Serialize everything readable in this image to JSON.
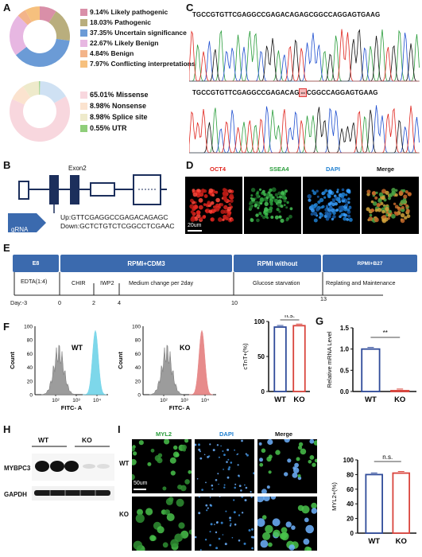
{
  "panels": {
    "a": "A",
    "b": "B",
    "c": "C",
    "d": "D",
    "e": "E",
    "f": "F",
    "g": "G",
    "h": "H",
    "i": "I"
  },
  "panelA": {
    "donut1": [
      {
        "label": "9.14% Likely pathogenic",
        "value": 9.14,
        "color": "#d98fa8"
      },
      {
        "label": "18.03% Pathogenic",
        "value": 18.03,
        "color": "#b9ae7d"
      },
      {
        "label": "37.35% Uncertain significance",
        "value": 37.35,
        "color": "#6b9bd6"
      },
      {
        "label": "22.67% Likely Benign",
        "value": 22.67,
        "color": "#e7b7e2"
      },
      {
        "label": "4.84% Benign",
        "value": 4.84,
        "color": "#f3b48a"
      },
      {
        "label": "7.97% Conflicting interpretations",
        "value": 7.97,
        "color": "#f6c07e"
      }
    ],
    "donut2": [
      {
        "label": "65.01% Missense",
        "value": 65.01,
        "color": "#f8d7de"
      },
      {
        "label": "8.98% Nonsense",
        "value": 8.98,
        "color": "#fbe3cf"
      },
      {
        "label": "8.98% Splice site",
        "value": 8.98,
        "color": "#eeeacb"
      },
      {
        "label": "0.55% UTR",
        "value": 0.55,
        "color": "#8fce7a"
      },
      {
        "label": "",
        "value": 16.48,
        "color": "#cfe1f3"
      }
    ]
  },
  "panelB": {
    "exon_label": "Exon2",
    "grna_label": "gRNA",
    "up": "Up:GTTCGAGGCCGAGACAGAGC",
    "down": "Down:GCTCTGTCTCGGCCTCGAAC"
  },
  "panelC": {
    "seq_top": "TGCCGTGTTCGAGGCCGAGACAGAGCGGCCAGGAGTGAAG",
    "seq_bottom_left": "TGCCGTGTTCGAGGCCGAGACAG",
    "seq_bottom_gap": "--",
    "seq_bottom_right": "CGGCCAGGAGTGAAG"
  },
  "panelD": {
    "labels": [
      "OCT4",
      "SSEA4",
      "DAPI",
      "Merge"
    ],
    "label_colors": [
      "#e0261f",
      "#2a9d3b",
      "#1f7fd0",
      "#111111"
    ],
    "scale": "20um"
  },
  "panelE": {
    "boxes": [
      "E8",
      "RPMI+CDM3",
      "RPMI without",
      "RPMI+B27"
    ],
    "steps": [
      "EDTA(1:4)",
      "CHIR",
      "IWP2",
      "Medium change per 2day",
      "Glucose starvation",
      "Replating and Maintenance"
    ],
    "days": [
      "Day:-3",
      "0",
      "2",
      "4",
      "10",
      "13"
    ]
  },
  "panelF": {
    "flow1_label": "WT",
    "flow2_label": "KO",
    "y_ticks": [
      "100",
      "80",
      "60",
      "40",
      "20",
      "0"
    ],
    "x_ticks": [
      "10²",
      "10³",
      "10⁴"
    ],
    "ylabel": "Count",
    "xlabel": "FITC- A"
  },
  "panelH": {
    "groups": [
      "WT",
      "KO"
    ],
    "bands": [
      "MYBPC3",
      "GAPDH"
    ]
  },
  "panelI": {
    "labels": [
      "MYL2",
      "DAPI",
      "Merge"
    ],
    "label_colors": [
      "#2a9d3b",
      "#1f7fd0",
      "#111111"
    ],
    "rows": [
      "WT",
      "KO"
    ],
    "scale": "50um"
  },
  "chart_data": [
    {
      "type": "bar",
      "categories": [
        "WT",
        "KO"
      ],
      "values": [
        92,
        94
      ],
      "ylabel": "cTnT+(%)",
      "ylim": [
        0,
        100
      ],
      "yticks": [
        "0",
        "50",
        "100"
      ],
      "annotation": "n.s.",
      "colors": [
        "#2f4b9a",
        "#d9443c"
      ]
    },
    {
      "type": "bar",
      "categories": [
        "WT",
        "KO"
      ],
      "values": [
        1.0,
        0.02
      ],
      "ylabel": "Relative mRNA Level",
      "ylim": [
        0,
        1.5
      ],
      "yticks": [
        "0.0",
        "0.5",
        "1.0",
        "1.5"
      ],
      "annotation": "**",
      "colors": [
        "#2f4b9a",
        "#d9443c"
      ]
    },
    {
      "type": "bar",
      "categories": [
        "WT",
        "KO"
      ],
      "values": [
        80,
        82
      ],
      "ylabel": "MYL2+(%)",
      "ylim": [
        0,
        100
      ],
      "yticks": [
        "0",
        "20",
        "40",
        "60",
        "80",
        "100"
      ],
      "annotation": "n.s.",
      "colors": [
        "#2f4b9a",
        "#d9443c"
      ]
    }
  ]
}
